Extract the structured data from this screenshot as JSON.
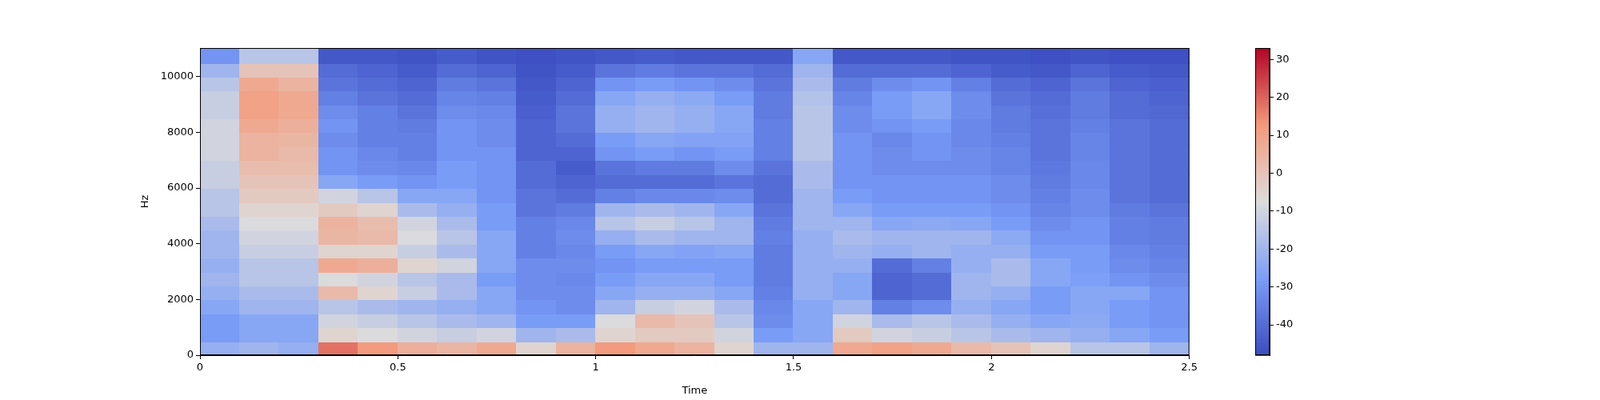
{
  "chart_data": {
    "type": "heatmap",
    "x_label": "Time",
    "y_label": "Hz",
    "xlim": [
      0,
      2.5
    ],
    "xticks": [
      0,
      0.5,
      1,
      1.5,
      2,
      2.5
    ],
    "ylim": [
      0,
      11025
    ],
    "yticks": [
      0,
      2000,
      4000,
      6000,
      8000,
      10000
    ],
    "x_edges": [
      0,
      0.1,
      0.2,
      0.3,
      0.4,
      0.5,
      0.6,
      0.7,
      0.8,
      0.9,
      1.0,
      1.1,
      1.2,
      1.3,
      1.4,
      1.5,
      1.6,
      1.7,
      1.8,
      1.9,
      2.0,
      2.1,
      2.2,
      2.3,
      2.4,
      2.5
    ],
    "y_edges": [
      0,
      500,
      1000,
      1500,
      2000,
      2500,
      3000,
      3500,
      4000,
      4500,
      5000,
      5500,
      6000,
      6500,
      7000,
      7500,
      8000,
      8500,
      9000,
      9500,
      10000,
      10500,
      11025
    ],
    "z": [
      [
        -22,
        -28,
        -28,
        -25,
        -22,
        -20,
        -22,
        -20,
        -20,
        -18,
        -15,
        -15,
        -12,
        -12,
        -10,
        -10,
        -10,
        -12,
        -12,
        -15,
        -20,
        -30
      ],
      [
        -20,
        -25,
        -25,
        -20,
        -18,
        -15,
        -15,
        -12,
        -10,
        -8,
        -5,
        -2,
        0,
        2,
        5,
        5,
        8,
        10,
        10,
        8,
        0,
        -15
      ],
      [
        -22,
        -25,
        -25,
        -20,
        -18,
        -15,
        -15,
        -12,
        -10,
        -8,
        -5,
        -2,
        0,
        2,
        3,
        4,
        6,
        8,
        8,
        5,
        0,
        -15
      ],
      [
        18,
        -5,
        -10,
        -15,
        3,
        -8,
        8,
        -5,
        4,
        5,
        -2,
        -10,
        -25,
        -30,
        -30,
        -32,
        -30,
        -32,
        -35,
        -38,
        -40,
        -45
      ],
      [
        12,
        -8,
        -12,
        -18,
        -5,
        -10,
        6,
        -5,
        3,
        2,
        -5,
        -15,
        -28,
        -32,
        -33,
        -35,
        -35,
        -35,
        -38,
        -40,
        -42,
        -45
      ],
      [
        6,
        -10,
        -15,
        -20,
        -12,
        -15,
        -5,
        -12,
        -8,
        -10,
        -18,
        -25,
        -30,
        -33,
        -35,
        -35,
        -36,
        -38,
        -40,
        -42,
        -44,
        -46
      ],
      [
        4,
        -12,
        -18,
        -22,
        -18,
        -18,
        -10,
        -18,
        -15,
        -18,
        -22,
        -25,
        -28,
        -28,
        -30,
        -30,
        -30,
        -32,
        -34,
        -36,
        -40,
        -44
      ],
      [
        8,
        -10,
        -20,
        -25,
        -25,
        -28,
        -25,
        -25,
        -25,
        -28,
        -28,
        -30,
        -30,
        -30,
        -30,
        -32,
        -32,
        -33,
        -35,
        -38,
        -42,
        -46
      ],
      [
        -5,
        -20,
        -28,
        -30,
        -32,
        -32,
        -32,
        -35,
        -35,
        -35,
        -38,
        -38,
        -40,
        -40,
        -42,
        -42,
        -42,
        -43,
        -44,
        -45,
        -46,
        -47
      ],
      [
        5,
        -18,
        -28,
        -32,
        -32,
        -33,
        -32,
        -33,
        -32,
        -33,
        -36,
        -40,
        -42,
        -44,
        -42,
        -40,
        -38,
        -38,
        -40,
        -42,
        -44,
        -46
      ],
      [
        12,
        -5,
        -8,
        -20,
        -25,
        -28,
        -30,
        -28,
        -22,
        -15,
        -20,
        -35,
        -40,
        -38,
        -30,
        -28,
        -22,
        -22,
        -25,
        -30,
        -38,
        -45
      ],
      [
        8,
        -2,
        3,
        -12,
        -22,
        -25,
        -28,
        -25,
        -18,
        -12,
        -18,
        -33,
        -40,
        -36,
        -28,
        -25,
        -20,
        -20,
        -22,
        -28,
        -36,
        -44
      ],
      [
        5,
        -2,
        0,
        -10,
        -22,
        -25,
        -28,
        -26,
        -20,
        -15,
        -20,
        -33,
        -40,
        -36,
        -30,
        -26,
        -22,
        -22,
        -24,
        -30,
        -38,
        -45
      ],
      [
        -5,
        -10,
        -15,
        -18,
        -25,
        -28,
        -28,
        -25,
        -20,
        -20,
        -25,
        -32,
        -38,
        -32,
        -28,
        -26,
        -25,
        -25,
        -28,
        -32,
        -38,
        -45
      ],
      [
        -20,
        -28,
        -32,
        -33,
        -35,
        -36,
        -36,
        -36,
        -35,
        -36,
        -38,
        -40,
        -40,
        -38,
        -35,
        -35,
        -35,
        -36,
        -36,
        -38,
        -40,
        -45
      ],
      [
        -20,
        -25,
        -25,
        -25,
        -22,
        -22,
        -22,
        -22,
        -22,
        -20,
        -20,
        -20,
        -18,
        -18,
        -15,
        -15,
        -15,
        -15,
        -16,
        -18,
        -20,
        -25
      ],
      [
        8,
        -2,
        -10,
        -20,
        -25,
        -25,
        -22,
        -20,
        -18,
        -20,
        -25,
        -28,
        -30,
        -30,
        -30,
        -30,
        -32,
        -32,
        -34,
        -36,
        -40,
        -45
      ],
      [
        10,
        -10,
        -18,
        -35,
        -42,
        -42,
        -40,
        -22,
        -20,
        -25,
        -28,
        -30,
        -30,
        -32,
        -32,
        -33,
        -30,
        -28,
        -28,
        -32,
        -40,
        -45
      ],
      [
        8,
        -12,
        -15,
        -32,
        -40,
        -40,
        -35,
        -20,
        -20,
        -24,
        -28,
        -30,
        -30,
        -32,
        -30,
        -30,
        -28,
        -25,
        -25,
        -30,
        -40,
        -45
      ],
      [
        3,
        -15,
        -18,
        -22,
        -20,
        -20,
        -22,
        -22,
        -20,
        -25,
        -28,
        -30,
        -30,
        -32,
        -32,
        -33,
        -33,
        -32,
        -32,
        -35,
        -42,
        -46
      ],
      [
        0,
        -18,
        -22,
        -25,
        -22,
        -18,
        -18,
        -22,
        -24,
        -28,
        -30,
        -32,
        -32,
        -34,
        -34,
        -35,
        -36,
        -36,
        -38,
        -40,
        -44,
        -46
      ],
      [
        -5,
        -20,
        -25,
        -28,
        -28,
        -25,
        -25,
        -28,
        -30,
        -32,
        -34,
        -35,
        -36,
        -37,
        -38,
        -38,
        -38,
        -39,
        -40,
        -42,
        -45,
        -47
      ],
      [
        -15,
        -22,
        -24,
        -25,
        -25,
        -27,
        -28,
        -28,
        -30,
        -30,
        -32,
        -32,
        -33,
        -33,
        -34,
        -34,
        -35,
        -36,
        -36,
        -38,
        -42,
        -46
      ],
      [
        -15,
        -25,
        -28,
        -28,
        -25,
        -30,
        -32,
        -33,
        -35,
        -35,
        -36,
        -38,
        -38,
        -38,
        -38,
        -38,
        -38,
        -40,
        -40,
        -42,
        -44,
        -47
      ],
      [
        -20,
        -28,
        -30,
        -30,
        -30,
        -32,
        -34,
        -35,
        -36,
        -36,
        -38,
        -40,
        -40,
        -40,
        -40,
        -40,
        -40,
        -41,
        -42,
        -43,
        -45,
        -47
      ]
    ],
    "colorbar": {
      "range": [
        -48,
        33
      ],
      "ticks": [
        -40,
        -30,
        -20,
        -10,
        0,
        10,
        20,
        30
      ]
    },
    "grid": false
  }
}
